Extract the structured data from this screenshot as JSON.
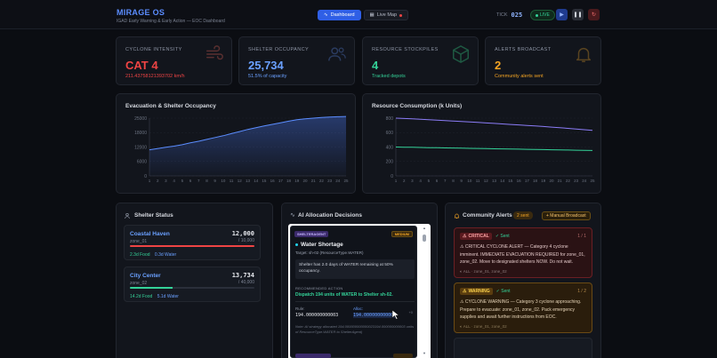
{
  "header": {
    "title": "MIRAGE OS",
    "subtitle": "IGAD Early Warning & Early Action — EOC Dashboard",
    "nav": [
      {
        "label": "Dashboard",
        "icon": "pulse-icon",
        "active": true
      },
      {
        "label": "Live Map",
        "icon": "map-icon",
        "active": false
      }
    ],
    "tick_label": "TICK",
    "tick_value": "025",
    "live_label": "LIVE"
  },
  "stats": [
    {
      "label": "CYCLONE INTENSITY",
      "value": "CAT 4",
      "sub": "211.43758121393702 km/h",
      "color": "#ef4444",
      "icon": "wind-icon"
    },
    {
      "label": "SHELTER OCCUPANCY",
      "value": "25,734",
      "sub": "51.5% of capacity",
      "color": "#6aa0ff",
      "icon": "users-icon"
    },
    {
      "label": "RESOURCE STOCKPILES",
      "value": "4",
      "sub": "Tracked depots",
      "color": "#34d399",
      "icon": "box-icon"
    },
    {
      "label": "ALERTS BROADCAST",
      "value": "2",
      "sub": "Community alerts sent",
      "color": "#f5a524",
      "icon": "bell-icon"
    }
  ],
  "evac_chart": {
    "title": "Evacuation & Shelter Occupancy",
    "y_ticks": [
      "25000",
      "18000",
      "12000",
      "6000",
      "0"
    ],
    "x_ticks": [
      "1",
      "2",
      "3",
      "4",
      "5",
      "6",
      "7",
      "8",
      "9",
      "10",
      "11",
      "12",
      "13",
      "14",
      "15",
      "16",
      "17",
      "18",
      "19",
      "20",
      "21",
      "22",
      "23",
      "24",
      "25"
    ]
  },
  "resource_chart": {
    "title": "Resource Consumption (k Units)",
    "y_ticks": [
      "800",
      "600",
      "400",
      "200",
      "0"
    ],
    "x_ticks": [
      "1",
      "2",
      "3",
      "4",
      "5",
      "6",
      "7",
      "8",
      "9",
      "10",
      "11",
      "12",
      "13",
      "14",
      "15",
      "16",
      "17",
      "18",
      "19",
      "20",
      "21",
      "22",
      "23",
      "24",
      "25"
    ]
  },
  "chart_data": [
    {
      "type": "area",
      "title": "Evacuation & Shelter Occupancy",
      "x": [
        1,
        2,
        3,
        4,
        5,
        6,
        7,
        8,
        9,
        10,
        11,
        12,
        13,
        14,
        15,
        16,
        17,
        18,
        19,
        20,
        21,
        22,
        23,
        24,
        25
      ],
      "series": [
        {
          "values": [
            11300,
            11800,
            12400,
            12900,
            13500,
            14300,
            15000,
            15800,
            16600,
            17400,
            18300,
            19200,
            20100,
            20900,
            21600,
            22300,
            23000,
            23700,
            24300,
            24700,
            25000,
            25250,
            25450,
            25600,
            25734
          ]
        }
      ],
      "ylim": [
        0,
        25000
      ]
    },
    {
      "type": "line",
      "title": "Resource Consumption (k Units)",
      "x": [
        1,
        2,
        3,
        4,
        5,
        6,
        7,
        8,
        9,
        10,
        11,
        12,
        13,
        14,
        15,
        16,
        17,
        18,
        19,
        20,
        21,
        22,
        23,
        24,
        25
      ],
      "series": [
        {
          "values": [
            800,
            795,
            790,
            784,
            778,
            772,
            766,
            760,
            754,
            748,
            741,
            734,
            727,
            720,
            713,
            706,
            699,
            692,
            684,
            676,
            668,
            659,
            650,
            640,
            630
          ],
          "color": "#8b7cf6"
        },
        {
          "values": [
            400,
            398,
            396,
            394,
            392,
            390,
            388,
            386,
            384,
            382,
            380,
            378,
            376,
            374,
            372,
            370,
            368,
            366,
            364,
            362,
            360,
            358,
            356,
            354,
            352
          ],
          "color": "#34d399"
        }
      ],
      "ylim": [
        0,
        800
      ]
    }
  ],
  "shelter_status": {
    "title": "Shelter Status",
    "items": [
      {
        "name": "Coastal Haven",
        "zone": "zone_01",
        "count": "12,000",
        "capacity": "/ 10,000",
        "fill": 1.0,
        "fill_color": "#ef4444",
        "food": "2.3d Food",
        "water": "0.3d Water"
      },
      {
        "name": "City Center",
        "zone": "zone_02",
        "count": "13,734",
        "capacity": "/ 40,000",
        "fill": 0.34,
        "fill_color": "#34d399",
        "food": "14.2d Food",
        "water": "5.1d Water"
      }
    ]
  },
  "ai_panel": {
    "title": "AI Allocation Decisions",
    "agent": "SHELTERAGENT",
    "priority": "MEDIUM",
    "heading": "Water Shortage",
    "target": "Target: sh-02 (ResourceType.WATER)",
    "reason": "Shelter has 2.0 days of WATER remaining at 50% occupancy.",
    "rec_label": "RECOMMENDED ACTION",
    "rec_text": "Dispatch 194 units of WATER to Shelter sh-02.",
    "rule_label": "Rule:",
    "rule_value": "194.000000000003",
    "alloc_label": "Alloc:",
    "alloc_value": "194.000000000003",
    "alloc_tag": "+0",
    "note": "Note: AI strategy allocated 194.000000000000023194.000000000003 units of ResourceType.WATER to ShelterAgent)"
  },
  "alerts_panel": {
    "title": "Community Alerts",
    "sent_badge": "2 sent",
    "broadcast_button": "+ Manual Broadcast",
    "alerts": [
      {
        "severity": "CRITICAL",
        "sent": "✓ Sent",
        "count": "1 / 1",
        "text": "⚠ CRITICAL CYCLONE ALERT — Category 4 cyclone imminent. IMMEDIATE EVACUATION REQUIRED for zone_01, zone_02. Move to designated shelters NOW. Do not wait.",
        "zones": "ALL · zone_01, zone_02"
      },
      {
        "severity": "WARNING",
        "sent": "✓ Sent",
        "count": "1 / 2",
        "text": "⚠ CYCLONE WARNING — Category 3 cyclone approaching. Prepare to evacuate: zone_01, zone_02. Pack emergency supplies and await further instructions from EOC.",
        "zones": "ALL · zone_01, zone_02"
      }
    ]
  }
}
